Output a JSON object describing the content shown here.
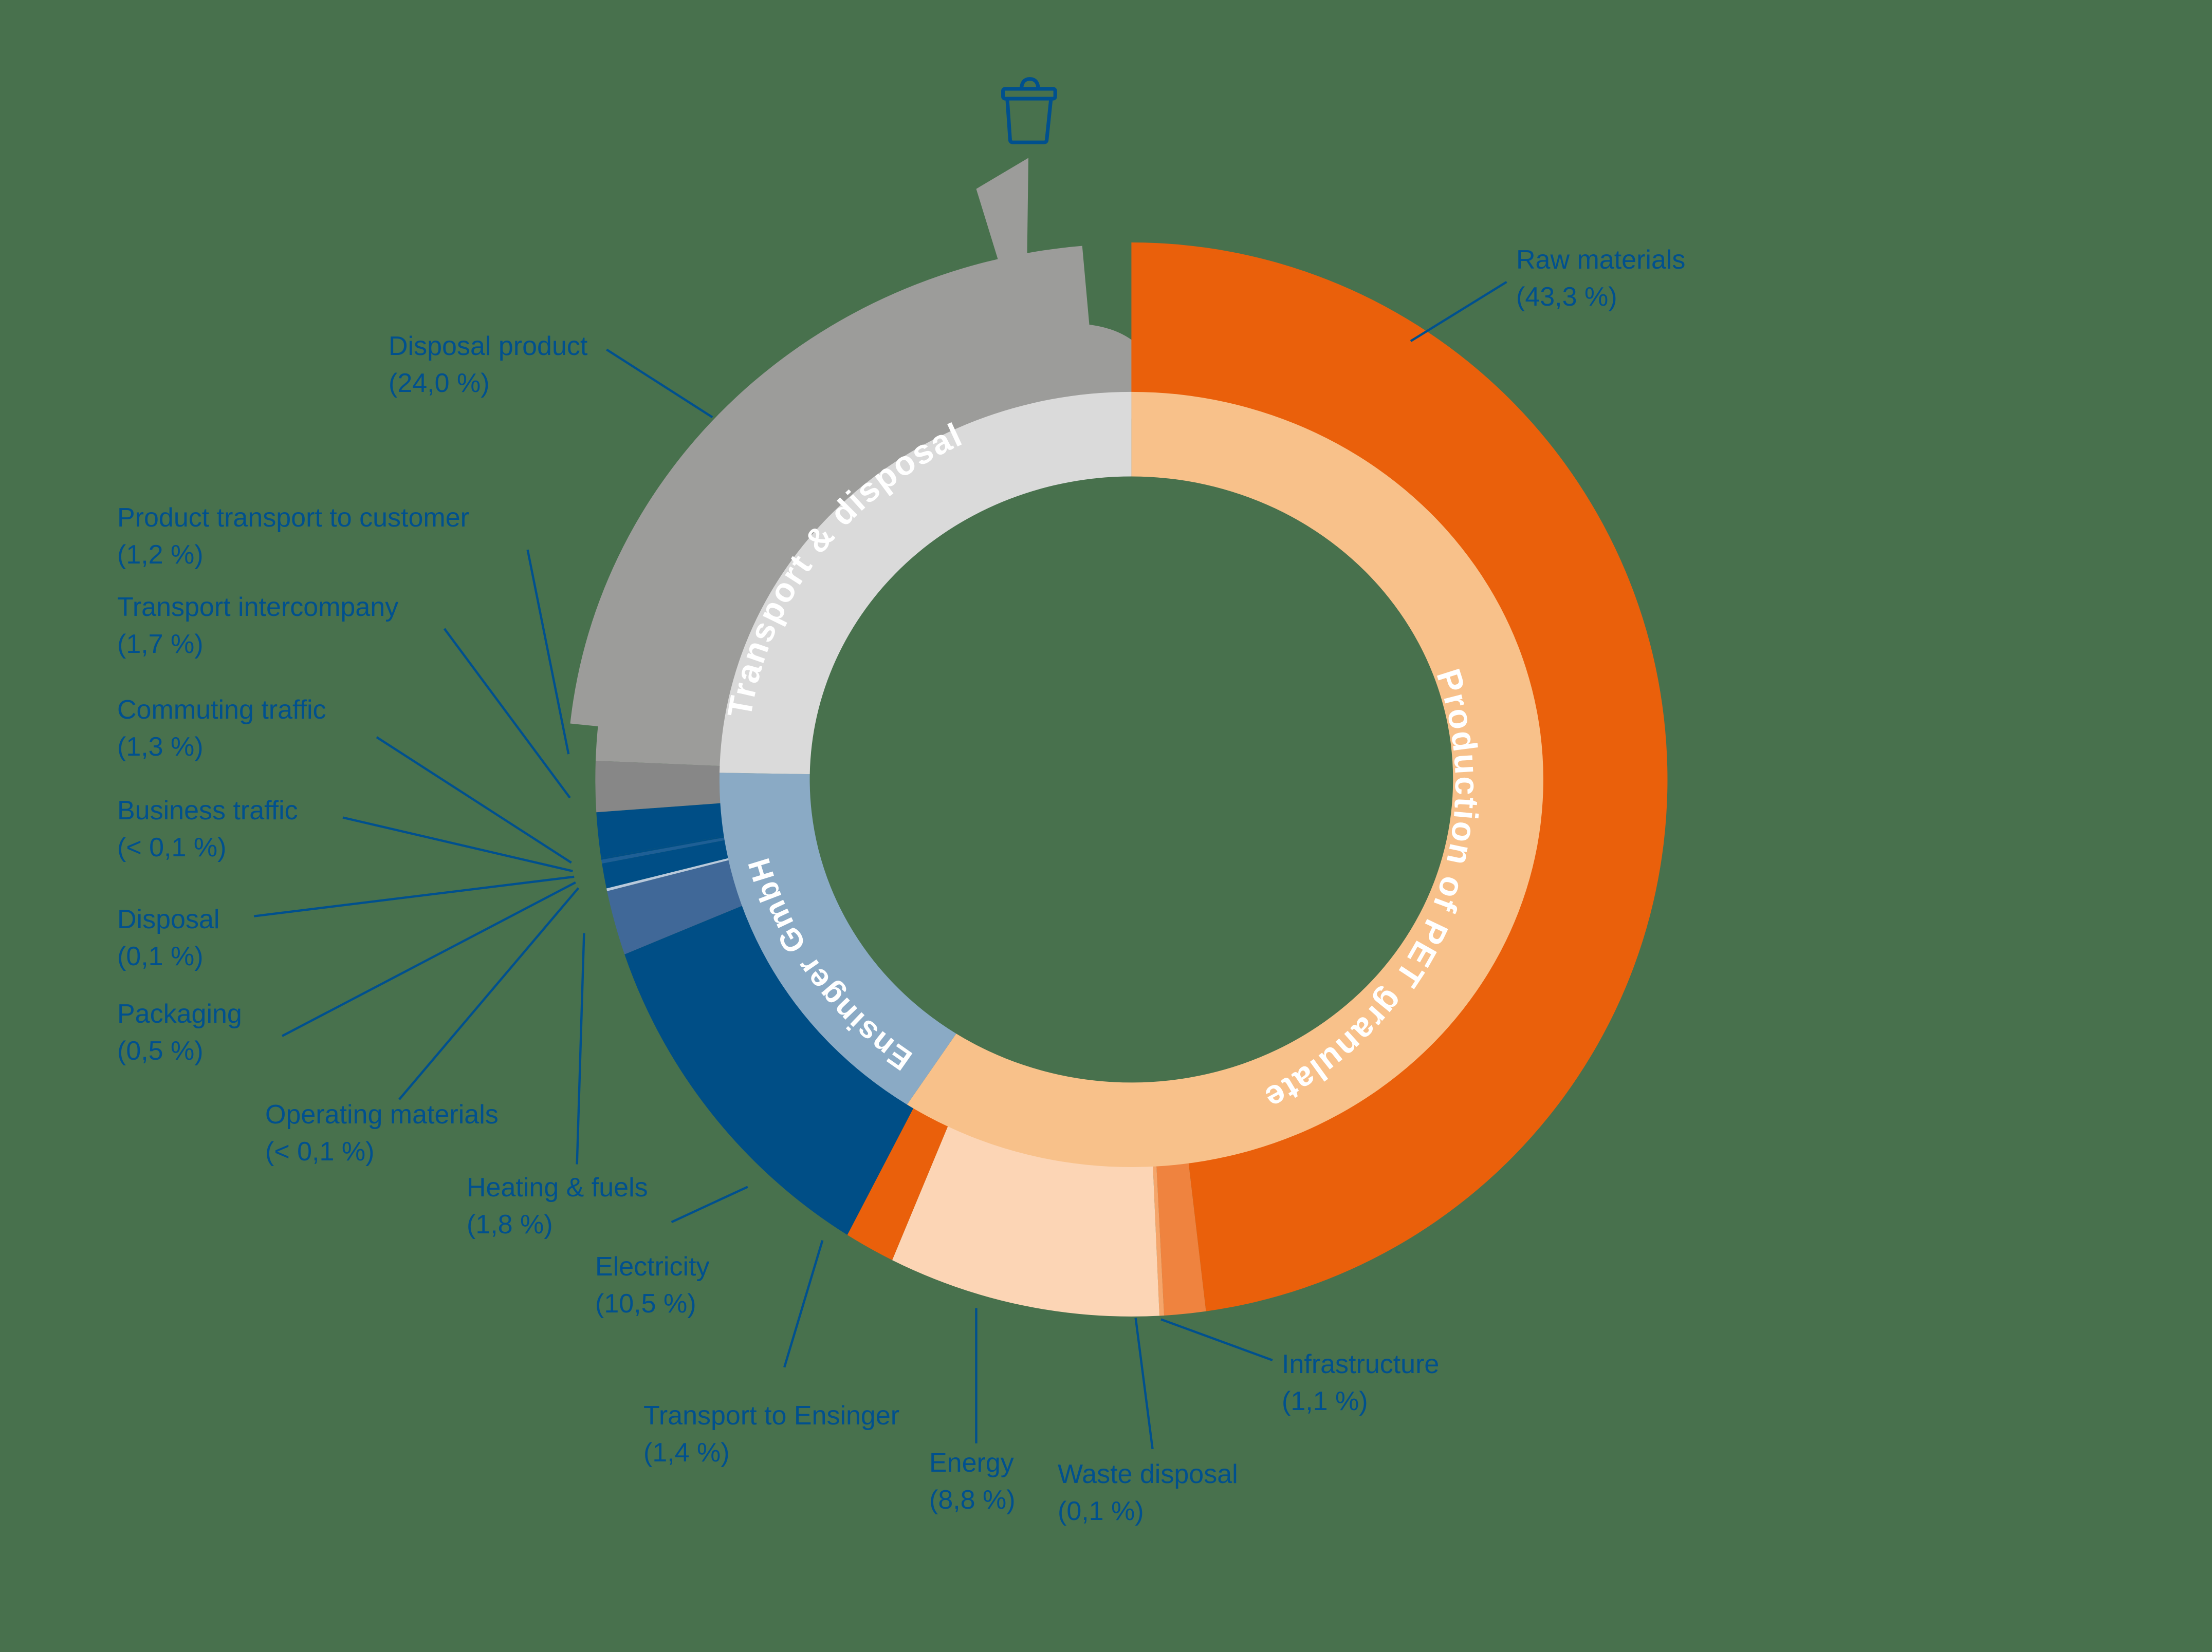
{
  "chart_data": {
    "type": "pie",
    "title": "",
    "background": "#48714d",
    "label_color": "#00508e",
    "inner_ring": [
      {
        "name": "Production of PET granulate",
        "start": 0,
        "end": 213,
        "color": "#f8c18a"
      },
      {
        "name": "Ensinger GmbH",
        "start": 213,
        "end": 271,
        "color": "#8aaac5"
      },
      {
        "name": "Transport & disposal",
        "start": 271,
        "end": 360,
        "color": "#dadada"
      }
    ],
    "outer_ring": [
      {
        "name": "Raw materials",
        "value": "43,3 %",
        "start": 0,
        "end": 172,
        "color": "#ea600b"
      },
      {
        "name": "Infrastructure",
        "value": "1,1 %",
        "start": 172,
        "end": 176.5,
        "color": "#ef833f"
      },
      {
        "name": "Waste disposal",
        "value": "0,1 %",
        "start": 176.5,
        "end": 177,
        "color": "#f5a56a"
      },
      {
        "name": "Energy",
        "value": "8,8 %",
        "start": 177,
        "end": 206.5,
        "color": "#fcd5b5"
      },
      {
        "name": "Transport to Ensinger",
        "value": "1,4 %",
        "start": 206.5,
        "end": 212,
        "color": "#ea600b"
      },
      {
        "name": "Electricity",
        "value": "10,5 %",
        "start": 212,
        "end": 251,
        "color": "#004e86"
      },
      {
        "name": "Heating & fuels",
        "value": "1,8 %",
        "start": 251,
        "end": 258,
        "color": "#406898"
      },
      {
        "name": "Operating materials",
        "value": "< 0,1 %",
        "start": 258,
        "end": 258.3,
        "color": "#b9c9dc"
      },
      {
        "name": "Packaging",
        "value": "0,5 %",
        "start": 258.3,
        "end": 261,
        "color": "#004e86"
      },
      {
        "name": "Disposal",
        "value": "0,1 %",
        "start": 261,
        "end": 261.4,
        "color": "#1e5f96"
      },
      {
        "name": "Business traffic",
        "value": "< 0,1 %",
        "start": 261.4,
        "end": 261.6,
        "color": "#004e86"
      },
      {
        "name": "Commuting traffic",
        "value": "1,3 %",
        "start": 261.6,
        "end": 266.5,
        "color": "#004e86"
      },
      {
        "name": "Transport intercompany",
        "value": "1,7 %",
        "start": 266.5,
        "end": 272,
        "color": "#878787"
      },
      {
        "name": "Product transport to customer",
        "value": "1,2 %",
        "start": 272,
        "end": 276,
        "color": "#9c9c9a"
      },
      {
        "name": "Disposal product",
        "value": "24,0 %",
        "start": 276,
        "end": 360,
        "color": "#9c9c9a"
      }
    ],
    "icon": "trash-bin-icon"
  },
  "labels": {
    "raw_materials": {
      "name": "Raw materials",
      "value": "(43,3 %)"
    },
    "disposal_product": {
      "name": "Disposal product",
      "value": "(24,0 %)"
    },
    "product_transport": {
      "name": "Product transport to customer",
      "value": "(1,2 %)"
    },
    "transport_intercompany": {
      "name": "Transport intercompany",
      "value": "(1,7 %)"
    },
    "commuting": {
      "name": "Commuting traffic",
      "value": "(1,3 %)"
    },
    "business": {
      "name": "Business traffic",
      "value": "(< 0,1 %)"
    },
    "disposal": {
      "name": "Disposal",
      "value": "(0,1 %)"
    },
    "packaging": {
      "name": "Packaging",
      "value": "(0,5 %)"
    },
    "operating": {
      "name": "Operating materials",
      "value": "(< 0,1 %)"
    },
    "heating": {
      "name": "Heating & fuels",
      "value": "(1,8 %)"
    },
    "electricity": {
      "name": "Electricity",
      "value": "(10,5 %)"
    },
    "transport_ensinger": {
      "name": "Transport to Ensinger",
      "value": "(1,4 %)"
    },
    "energy": {
      "name": "Energy",
      "value": "(8,8 %)"
    },
    "waste": {
      "name": "Waste disposal",
      "value": "(0,1 %)"
    },
    "infrastructure": {
      "name": "Infrastructure",
      "value": "(1,1 %)"
    }
  },
  "ring_titles": {
    "production": "Production of PET granulate",
    "ensinger": "Ensinger GmbH",
    "transport": "Transport & disposal"
  }
}
